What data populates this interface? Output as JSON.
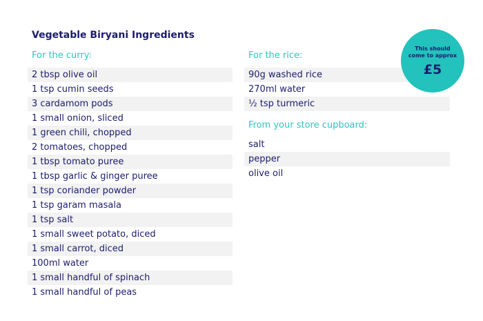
{
  "title": "Vegetable Biryani Ingredients",
  "curry": {
    "heading": "For the curry:",
    "items": [
      "2 tbsp olive oil",
      "1 tsp cumin seeds",
      "3 cardamom pods",
      "1 small onion, sliced",
      "1 green chili, chopped",
      "2 tomatoes, chopped",
      "1 tbsp tomato puree",
      "1 tbsp garlic & ginger puree",
      "1 tsp coriander powder",
      "1 tsp garam masala",
      "1 tsp salt",
      "1 small sweet potato, diced",
      "1 small carrot, diced",
      "100ml water",
      "1 small handful of spinach",
      "1 small handful of peas"
    ]
  },
  "rice": {
    "heading": "For the rice:",
    "items": [
      "90g washed rice",
      "270ml water",
      "½ tsp turmeric"
    ]
  },
  "cupboard": {
    "heading": "From your store cupboard:",
    "items": [
      "salt",
      "pepper",
      "olive oil"
    ]
  },
  "badge": {
    "text": "This should come to approx",
    "price": "£5"
  },
  "colors": {
    "heading_text": "#1c1c6e",
    "section_heading": "#2cc5c0",
    "badge_background": "#23c2bc",
    "row_shade": "#f2f2f2"
  }
}
